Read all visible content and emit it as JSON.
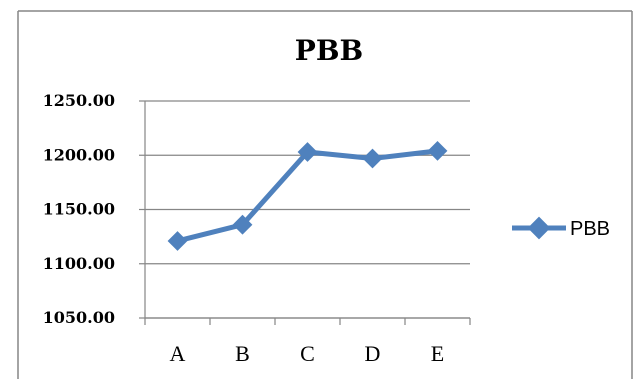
{
  "chart_data": {
    "type": "line",
    "title": "PBB",
    "categories": [
      "A",
      "B",
      "C",
      "D",
      "E"
    ],
    "series": [
      {
        "name": "PBB",
        "values": [
          1121,
          1136,
          1203,
          1197,
          1204
        ],
        "color": "#4F81BD",
        "marker": "diamond"
      }
    ],
    "y_tick_labels": [
      "1050.00",
      "1100.00",
      "1150.00",
      "1200.00",
      "1250.00"
    ],
    "ylim": [
      1050,
      1250
    ],
    "y_ticks": [
      1050,
      1100,
      1150,
      1200,
      1250
    ],
    "xlabel": "",
    "ylabel": "",
    "grid": "horizontal",
    "legend": "right"
  }
}
